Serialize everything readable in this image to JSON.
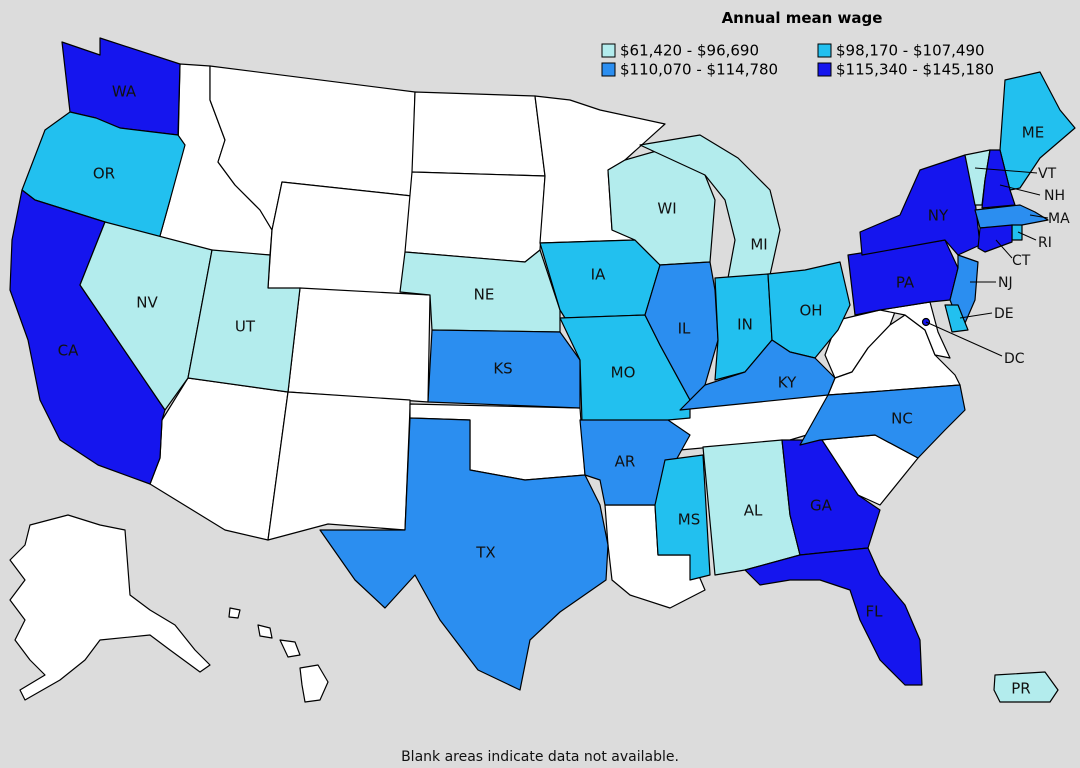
{
  "title": "Annual mean wage",
  "note": "Blank areas indicate data not available.",
  "legend": [
    {
      "label": "$61,420 - $96,690",
      "color": "#b3eced"
    },
    {
      "label": "$98,170 - $107,490",
      "color": "#22c0ef"
    },
    {
      "label": "$110,070 - $114,780",
      "color": "#2b8ef0"
    },
    {
      "label": "$115,340 - $145,180",
      "color": "#1515ee"
    }
  ],
  "no_data_color": "#ffffff",
  "states": [
    {
      "abbr": "WA",
      "bin": 3
    },
    {
      "abbr": "OR",
      "bin": 1
    },
    {
      "abbr": "CA",
      "bin": 3
    },
    {
      "abbr": "NV",
      "bin": 0
    },
    {
      "abbr": "UT",
      "bin": 0
    },
    {
      "abbr": "NE",
      "bin": 0
    },
    {
      "abbr": "KS",
      "bin": 2
    },
    {
      "abbr": "TX",
      "bin": 2
    },
    {
      "abbr": "IA",
      "bin": 1
    },
    {
      "abbr": "MO",
      "bin": 1
    },
    {
      "abbr": "AR",
      "bin": 2
    },
    {
      "abbr": "WI",
      "bin": 0
    },
    {
      "abbr": "IL",
      "bin": 2
    },
    {
      "abbr": "MS",
      "bin": 1
    },
    {
      "abbr": "MI",
      "bin": 0
    },
    {
      "abbr": "IN",
      "bin": 1
    },
    {
      "abbr": "AL",
      "bin": 0
    },
    {
      "abbr": "OH",
      "bin": 1
    },
    {
      "abbr": "KY",
      "bin": 2
    },
    {
      "abbr": "GA",
      "bin": 3
    },
    {
      "abbr": "FL",
      "bin": 3
    },
    {
      "abbr": "NC",
      "bin": 2
    },
    {
      "abbr": "PA",
      "bin": 3
    },
    {
      "abbr": "NY",
      "bin": 3
    },
    {
      "abbr": "ME",
      "bin": 1
    },
    {
      "abbr": "VT",
      "bin": 0
    },
    {
      "abbr": "NH",
      "bin": 3
    },
    {
      "abbr": "MA",
      "bin": 2
    },
    {
      "abbr": "RI",
      "bin": 1
    },
    {
      "abbr": "CT",
      "bin": 3
    },
    {
      "abbr": "NJ",
      "bin": 2
    },
    {
      "abbr": "DE",
      "bin": 1
    },
    {
      "abbr": "DC",
      "bin": 3
    },
    {
      "abbr": "PR",
      "bin": 0
    }
  ]
}
